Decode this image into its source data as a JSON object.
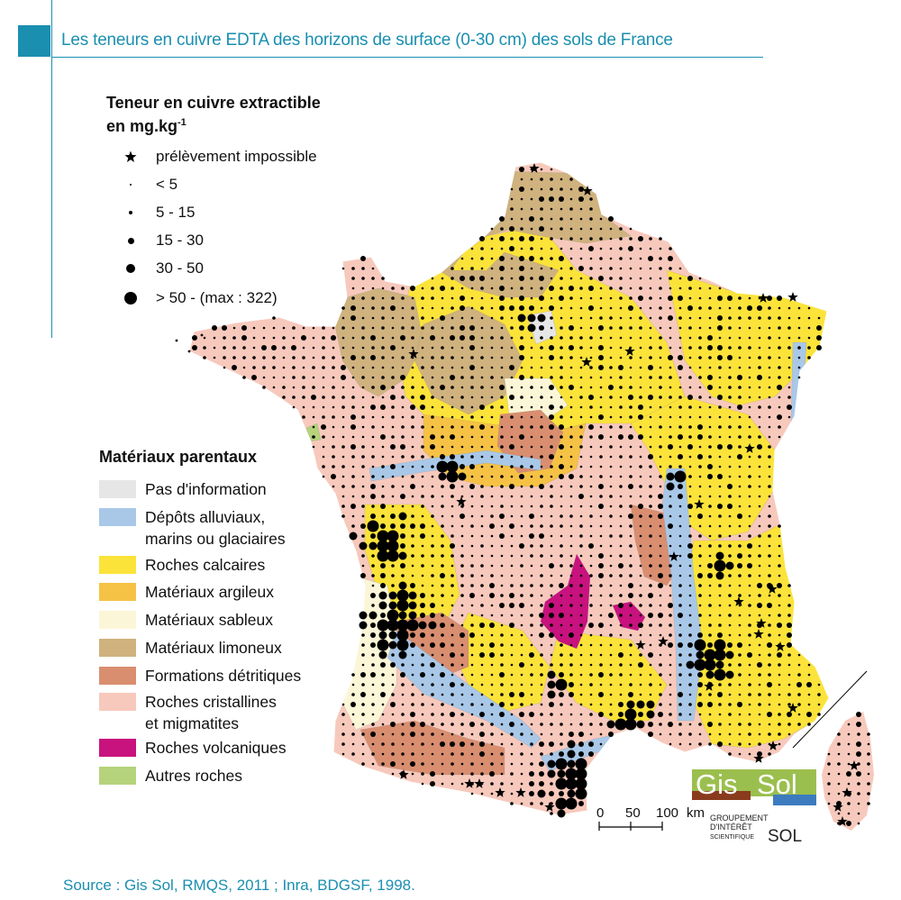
{
  "title": "Les teneurs en cuivre EDTA des horizons de surface (0-30 cm) des sols de France",
  "copper_legend": {
    "heading_line1": "Teneur en cuivre extractible",
    "heading_line2": "en mg.kg",
    "heading_sup": "-1",
    "items": [
      {
        "label": "prélèvement impossible",
        "symbol": "star-icon"
      },
      {
        "label": "< 5",
        "symbol": "dot-tiny"
      },
      {
        "label": "5 - 15",
        "symbol": "dot-small"
      },
      {
        "label": "15 - 30",
        "symbol": "dot-medium"
      },
      {
        "label": "30 - 50",
        "symbol": "dot-large"
      },
      {
        "label": "> 50 - (max : 322)",
        "symbol": "dot-xlarge"
      }
    ]
  },
  "material_legend": {
    "heading": "Matériaux parentaux",
    "items": [
      {
        "line1": "Pas d'information",
        "line2": "",
        "color": "#e6e6e6"
      },
      {
        "line1": "Dépôts alluviaux,",
        "line2": "marins ou glaciaires",
        "color": "#a9c8e8"
      },
      {
        "line1": "Roches calcaires",
        "line2": "",
        "color": "#fbe33a"
      },
      {
        "line1": "Matériaux argileux",
        "line2": "",
        "color": "#f6c245"
      },
      {
        "line1": "Matériaux sableux",
        "line2": "",
        "color": "#fbf6d7"
      },
      {
        "line1": "Matériaux limoneux",
        "line2": "",
        "color": "#cfb27e"
      },
      {
        "line1": "Formations détritiques",
        "line2": "",
        "color": "#d98e70"
      },
      {
        "line1": "Roches cristallines",
        "line2": "et migmatites",
        "color": "#f7c9bc"
      },
      {
        "line1": "Roches volcaniques",
        "line2": "",
        "color": "#c8127e"
      },
      {
        "line1": "Autres roches",
        "line2": "",
        "color": "#b5d37b"
      }
    ]
  },
  "scale": {
    "labels": [
      "0",
      "50",
      "100",
      "km"
    ]
  },
  "logo": {
    "part1": "Gis",
    "part2": "Sol",
    "line1": "GROUPEMENT",
    "line2": "D'INTÉRÊT",
    "line3": "SCIENTIFIQUE",
    "line4": "SOL"
  },
  "source": "Source : Gis Sol, RMQS, 2011 ; Inra, BDGSF, 1998."
}
